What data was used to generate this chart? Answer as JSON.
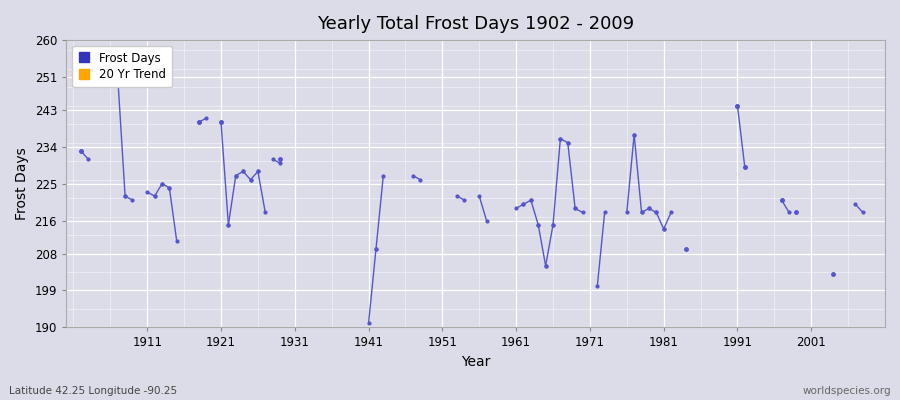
{
  "title": "Yearly Total Frost Days 1902 - 2009",
  "xlabel": "Year",
  "ylabel": "Frost Days",
  "bottom_left_text": "Latitude 42.25 Longitude -90.25",
  "bottom_right_text": "worldspecies.org",
  "legend_labels": [
    "Frost Days",
    "20 Yr Trend"
  ],
  "legend_colors": [
    "#3333bb",
    "#FFA500"
  ],
  "line_color": "#5555cc",
  "bg_color": "#dcdce8",
  "ylim": [
    190,
    260
  ],
  "yticks": [
    190,
    199,
    208,
    216,
    225,
    234,
    243,
    251,
    260
  ],
  "xlim": [
    1900,
    2011
  ],
  "xticks": [
    1911,
    1921,
    1931,
    1941,
    1951,
    1961,
    1971,
    1981,
    1991,
    2001
  ],
  "segments": [
    {
      "years": [
        1902,
        1903
      ],
      "values": [
        233,
        231
      ]
    },
    {
      "years": [
        1907,
        1908
      ],
      "values": [
        251,
        222
      ]
    },
    {
      "years": [
        1908,
        1909
      ],
      "values": [
        222,
        221
      ]
    },
    {
      "years": [
        1911,
        1912
      ],
      "values": [
        223,
        222
      ]
    },
    {
      "years": [
        1912,
        1913
      ],
      "values": [
        222,
        225
      ]
    },
    {
      "years": [
        1913,
        1914
      ],
      "values": [
        225,
        224
      ]
    },
    {
      "years": [
        1914,
        1915
      ],
      "values": [
        224,
        211
      ]
    },
    {
      "years": [
        1918,
        1919
      ],
      "values": [
        240,
        241
      ]
    },
    {
      "years": [
        1921,
        1922
      ],
      "values": [
        240,
        215
      ]
    },
    {
      "years": [
        1922,
        1923
      ],
      "values": [
        215,
        227
      ]
    },
    {
      "years": [
        1923,
        1924
      ],
      "values": [
        227,
        228
      ]
    },
    {
      "years": [
        1924,
        1925
      ],
      "values": [
        228,
        226
      ]
    },
    {
      "years": [
        1925,
        1926
      ],
      "values": [
        226,
        228
      ]
    },
    {
      "years": [
        1926,
        1927
      ],
      "values": [
        228,
        218
      ]
    },
    {
      "years": [
        1928,
        1929
      ],
      "values": [
        231,
        230
      ]
    },
    {
      "years": [
        1941,
        1942
      ],
      "values": [
        191,
        209
      ]
    },
    {
      "years": [
        1942,
        1943
      ],
      "values": [
        209,
        227
      ]
    },
    {
      "years": [
        1947,
        1948
      ],
      "values": [
        227,
        226
      ]
    },
    {
      "years": [
        1953,
        1954
      ],
      "values": [
        222,
        221
      ]
    },
    {
      "years": [
        1956,
        1957
      ],
      "values": [
        222,
        216
      ]
    },
    {
      "years": [
        1961,
        1962
      ],
      "values": [
        219,
        220
      ]
    },
    {
      "years": [
        1962,
        1963
      ],
      "values": [
        220,
        221
      ]
    },
    {
      "years": [
        1963,
        1964
      ],
      "values": [
        221,
        215
      ]
    },
    {
      "years": [
        1964,
        1965
      ],
      "values": [
        215,
        205
      ]
    },
    {
      "years": [
        1965,
        1966
      ],
      "values": [
        205,
        215
      ]
    },
    {
      "years": [
        1966,
        1967
      ],
      "values": [
        215,
        236
      ]
    },
    {
      "years": [
        1967,
        1968
      ],
      "values": [
        236,
        235
      ]
    },
    {
      "years": [
        1968,
        1969
      ],
      "values": [
        235,
        219
      ]
    },
    {
      "years": [
        1969,
        1970
      ],
      "values": [
        219,
        218
      ]
    },
    {
      "years": [
        1972,
        1973
      ],
      "values": [
        200,
        218
      ]
    },
    {
      "years": [
        1976,
        1977
      ],
      "values": [
        218,
        237
      ]
    },
    {
      "years": [
        1977,
        1978
      ],
      "values": [
        237,
        218
      ]
    },
    {
      "years": [
        1978,
        1979
      ],
      "values": [
        218,
        219
      ]
    },
    {
      "years": [
        1979,
        1980
      ],
      "values": [
        219,
        218
      ]
    },
    {
      "years": [
        1980,
        1981
      ],
      "values": [
        218,
        214
      ]
    },
    {
      "years": [
        1981,
        1982
      ],
      "values": [
        214,
        218
      ]
    },
    {
      "years": [
        1991,
        1992
      ],
      "values": [
        244,
        229
      ]
    },
    {
      "years": [
        1997,
        1998
      ],
      "values": [
        221,
        218
      ]
    },
    {
      "years": [
        2007,
        2008
      ],
      "values": [
        220,
        218
      ]
    }
  ],
  "isolated_points": [
    [
      1902,
      233
    ],
    [
      1918,
      240
    ],
    [
      1921,
      240
    ],
    [
      1929,
      231
    ],
    [
      1984,
      209
    ],
    [
      1991,
      244
    ],
    [
      1992,
      229
    ],
    [
      1997,
      221
    ],
    [
      1999,
      218
    ],
    [
      2004,
      203
    ]
  ]
}
